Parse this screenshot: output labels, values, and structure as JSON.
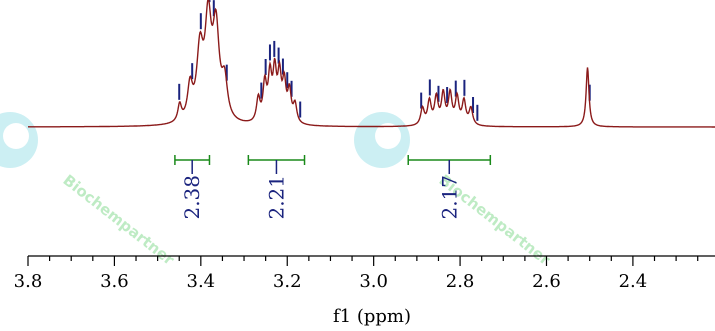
{
  "chart_data": {
    "type": "line",
    "xlabel": "f1 (ppm)",
    "xlim": [
      3.8,
      2.21
    ],
    "x_ticks": [
      "3.8",
      "3.6",
      "3.4",
      "3.2",
      "3.0",
      "2.8",
      "2.6",
      "2.4"
    ],
    "spectrum_color": "#8b1a1a",
    "peak_marker_color": "#1a237e",
    "integral_color": "#1a8a1a",
    "peaks": [
      3.45,
      3.42,
      3.4,
      3.38,
      3.37,
      3.34,
      3.26,
      3.25,
      3.24,
      3.23,
      3.22,
      3.21,
      3.2,
      3.19,
      3.17,
      2.89,
      2.87,
      2.85,
      2.83,
      2.81,
      2.79,
      2.77,
      2.76,
      2.5
    ],
    "integrals": [
      {
        "from": 3.46,
        "to": 3.38,
        "label": "2.38"
      },
      {
        "from": 3.29,
        "to": 3.16,
        "label": "2.21"
      },
      {
        "from": 2.92,
        "to": 2.73,
        "label": "2.17"
      }
    ],
    "watermark": "Biochempartner",
    "signals": [
      {
        "center": 3.449,
        "height": 0.1,
        "width": 0.005
      },
      {
        "center": 3.425,
        "height": 0.2,
        "width": 0.007
      },
      {
        "center": 3.402,
        "height": 0.4,
        "width": 0.009
      },
      {
        "center": 3.383,
        "height": 0.56,
        "width": 0.009
      },
      {
        "center": 3.365,
        "height": 0.52,
        "width": 0.009
      },
      {
        "center": 3.345,
        "height": 0.22,
        "width": 0.008
      },
      {
        "center": 3.267,
        "height": 0.14,
        "width": 0.005
      },
      {
        "center": 3.252,
        "height": 0.22,
        "width": 0.005
      },
      {
        "center": 3.24,
        "height": 0.26,
        "width": 0.005
      },
      {
        "center": 3.229,
        "height": 0.28,
        "width": 0.005
      },
      {
        "center": 3.218,
        "height": 0.26,
        "width": 0.005
      },
      {
        "center": 3.207,
        "height": 0.22,
        "width": 0.005
      },
      {
        "center": 3.195,
        "height": 0.18,
        "width": 0.005
      },
      {
        "center": 3.182,
        "height": 0.11,
        "width": 0.005
      },
      {
        "center": 2.887,
        "height": 0.1,
        "width": 0.005
      },
      {
        "center": 2.871,
        "height": 0.14,
        "width": 0.005
      },
      {
        "center": 2.855,
        "height": 0.16,
        "width": 0.005
      },
      {
        "center": 2.839,
        "height": 0.18,
        "width": 0.005
      },
      {
        "center": 2.823,
        "height": 0.18,
        "width": 0.005
      },
      {
        "center": 2.807,
        "height": 0.16,
        "width": 0.005
      },
      {
        "center": 2.791,
        "height": 0.14,
        "width": 0.005
      },
      {
        "center": 2.775,
        "height": 0.1,
        "width": 0.005
      },
      {
        "center": 2.505,
        "height": 0.35,
        "width": 0.004
      }
    ]
  }
}
